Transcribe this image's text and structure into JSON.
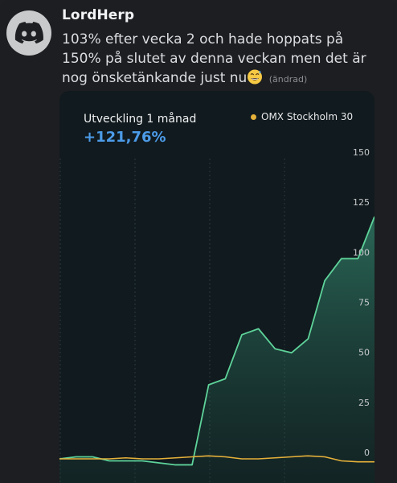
{
  "message": {
    "author": "LordHerp",
    "text": "103% efter vecka 2 och hade hoppats på 150% på slutet av denna veckan men det är nog önsketänkande just nu",
    "emoji": "grinning-sweat-emoji",
    "edited_label": "(ändrad)"
  },
  "card": {
    "title": "Utveckling 1 månad",
    "value": "+121,76%",
    "legend_label": "OMX Stockholm 30"
  },
  "colors": {
    "background": "#1d1e21",
    "card_background": "#111a1e",
    "portfolio_line": "#5ed39a",
    "omx_line": "#e6b13a",
    "value_text": "#4c9be8"
  },
  "chart_data": {
    "type": "area",
    "title": "Utveckling 1 månad",
    "ylim": [
      0,
      150
    ],
    "yticks": [
      "0",
      "25",
      "50",
      "75",
      "100",
      "125",
      "150"
    ],
    "grid": true,
    "legend_placement": "top-right",
    "series": [
      {
        "name": "",
        "values": [
          0,
          1,
          1,
          -1,
          -1,
          -1,
          -2,
          -3,
          -3,
          37,
          40,
          62,
          65,
          55,
          53,
          60,
          89,
          100,
          100,
          121
        ]
      },
      {
        "name": "OMX Stockholm 30",
        "values": [
          0,
          0,
          0,
          0,
          0.5,
          0,
          0,
          0.5,
          1,
          1.5,
          1,
          0,
          0,
          0.5,
          1,
          1.5,
          1,
          -1,
          -1.5,
          -1.5
        ]
      }
    ]
  }
}
